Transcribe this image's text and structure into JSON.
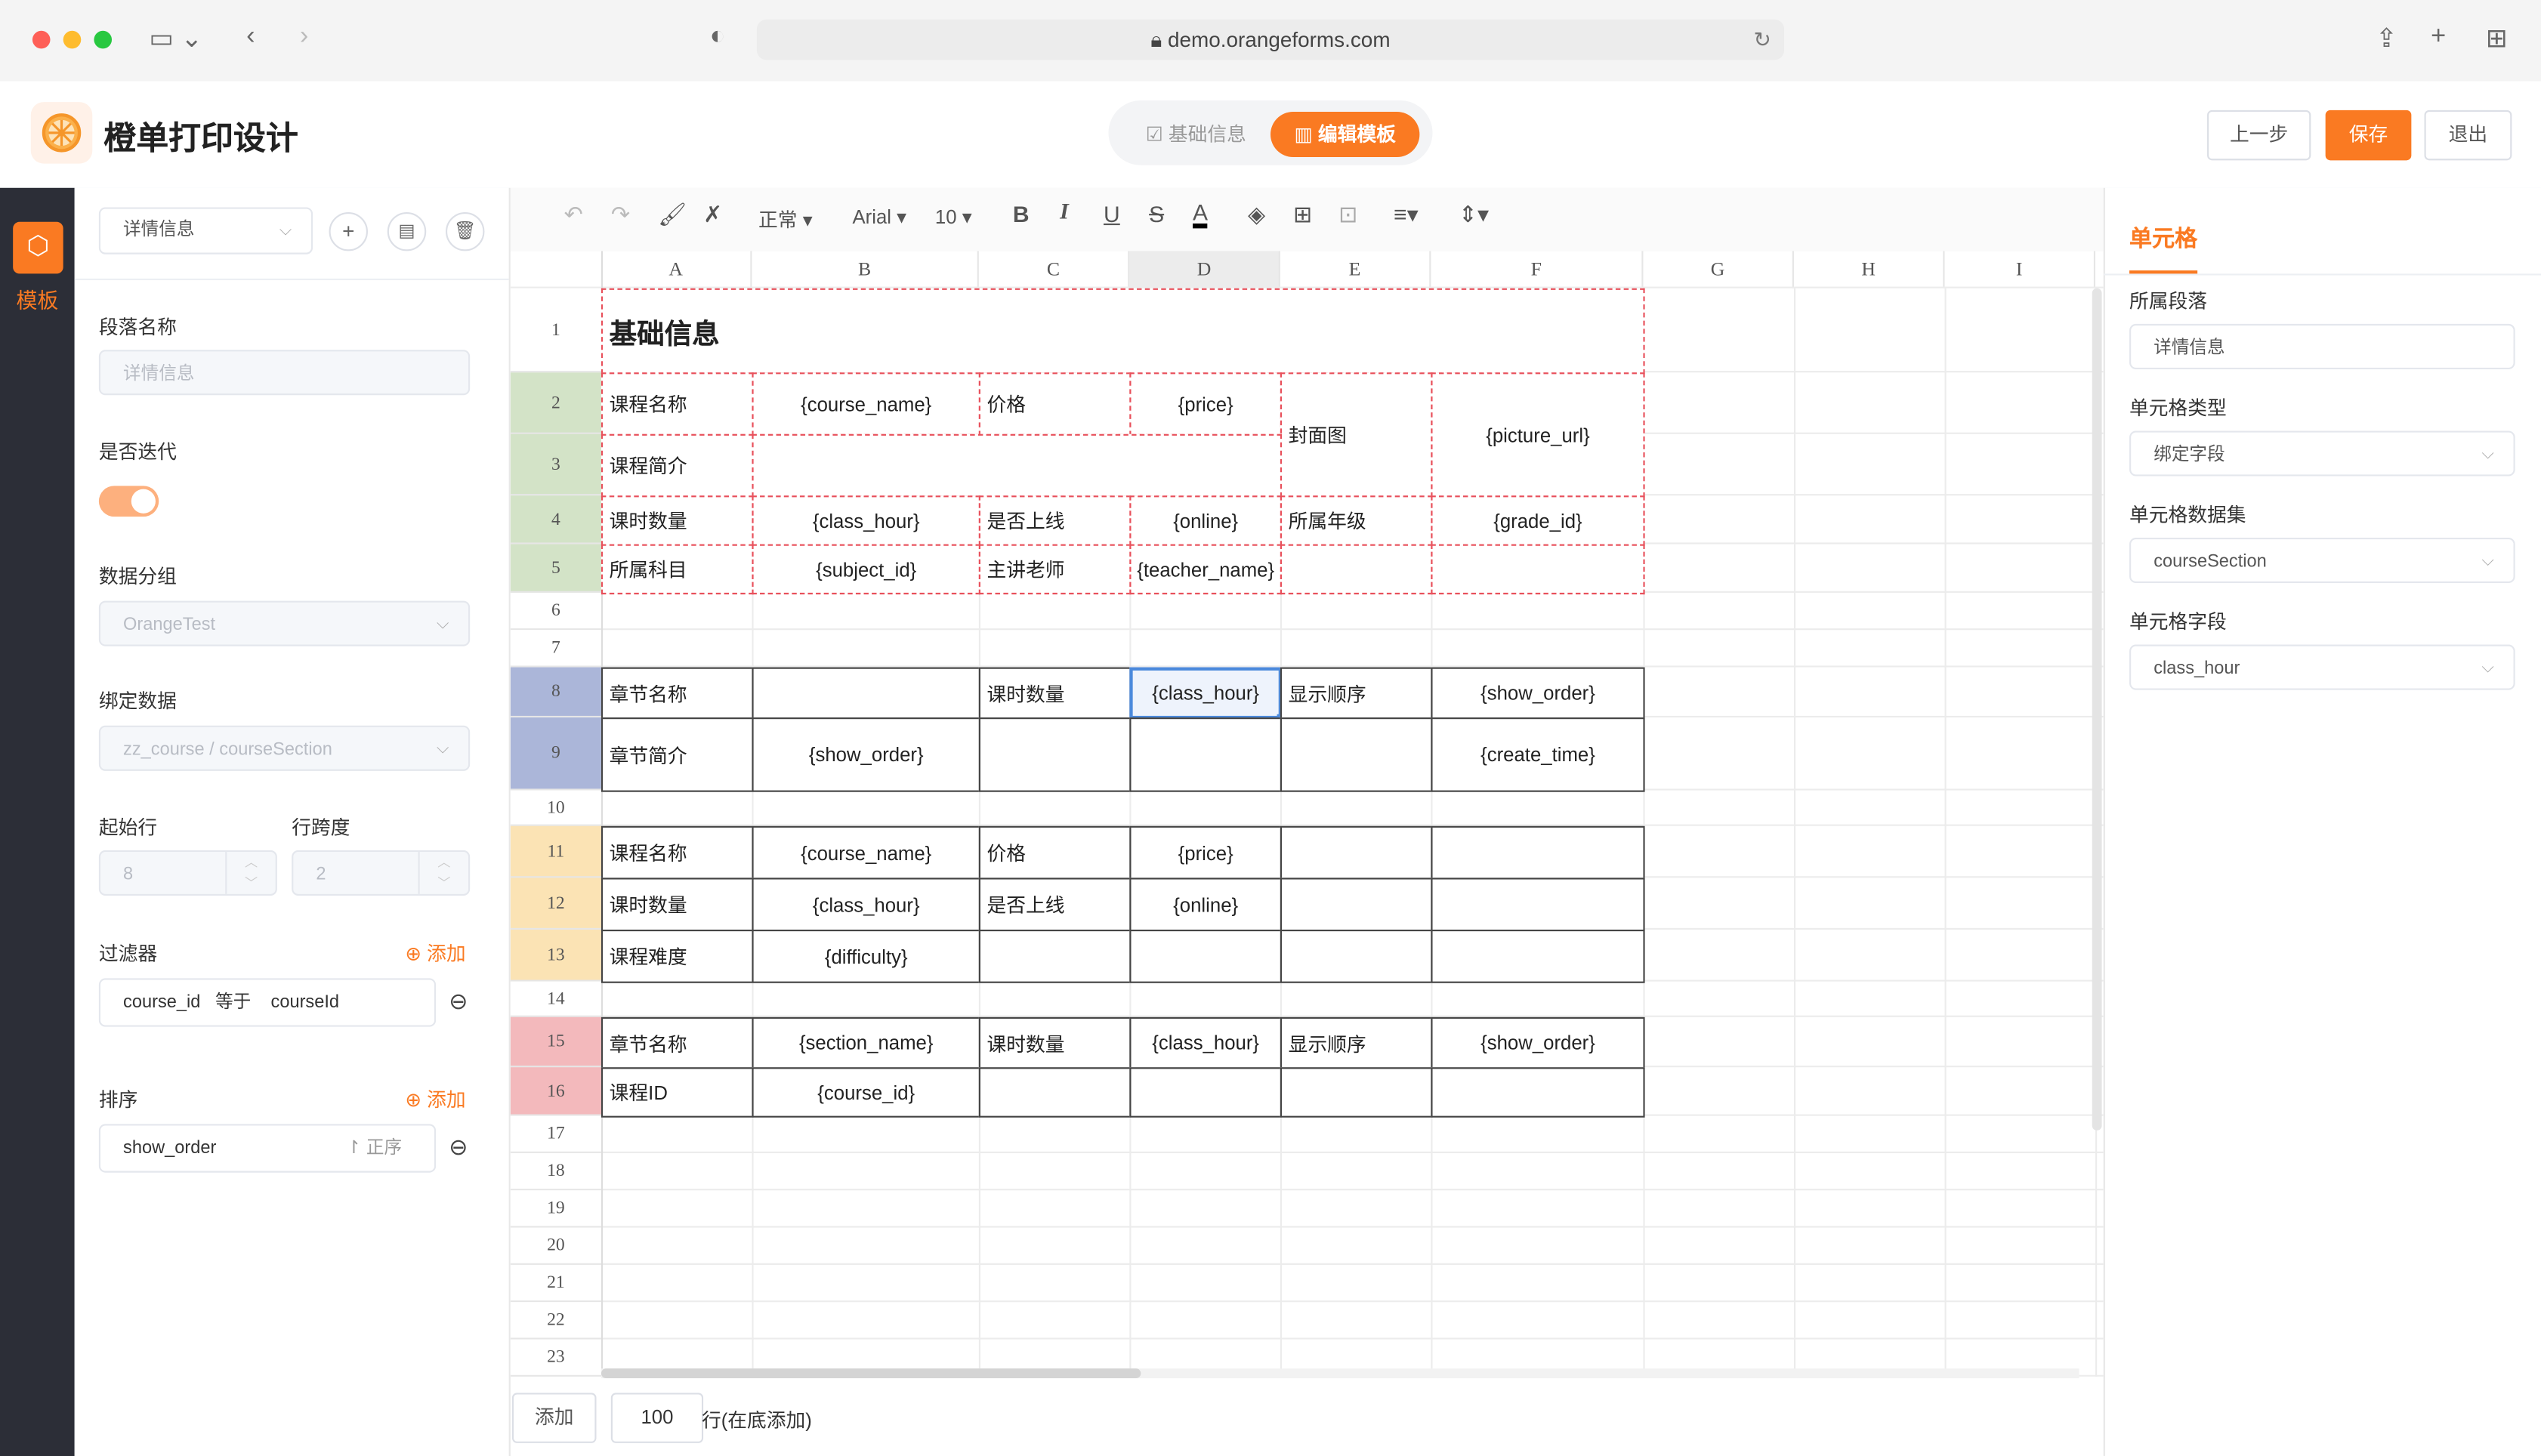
{
  "browser": {
    "url": "demo.orangeforms.com"
  },
  "app": {
    "title": "橙单打印设计",
    "accent": "#fa7a22"
  },
  "segments": [
    {
      "label": "基础信息",
      "active": false
    },
    {
      "label": "编辑模板",
      "active": true
    }
  ],
  "header_buttons": {
    "prev": "上一步",
    "save": "保存",
    "exit": "退出"
  },
  "sidebar": {
    "items": [
      {
        "label": "模板",
        "icon": "template-icon",
        "active": true
      }
    ]
  },
  "left_panel": {
    "section_select": "详情信息",
    "name_label": "段落名称",
    "name_placeholder": "详情信息",
    "iterate_label": "是否迭代",
    "iterate_on": true,
    "group_label": "数据分组",
    "group_value": "OrangeTest",
    "bind_label": "绑定数据",
    "bind_value": "zz_course / courseSection",
    "start_row_label": "起始行",
    "start_row": "8",
    "span_label": "行跨度",
    "span": "2",
    "filter_label": "过滤器",
    "add_label": "添加",
    "filter": {
      "field": "course_id",
      "op": "等于",
      "value": "courseId"
    },
    "sort_label": "排序",
    "sort": {
      "field": "show_order",
      "order": "正序"
    }
  },
  "toolbar": {
    "style": "正常",
    "font": "Arial",
    "size": "10"
  },
  "sheet": {
    "columns": [
      "A",
      "B",
      "C",
      "D",
      "E",
      "F",
      "G",
      "H",
      "I"
    ],
    "rows": [
      "1",
      "2",
      "3",
      "4",
      "5",
      "6",
      "7",
      "8",
      "9",
      "10",
      "11",
      "12",
      "13",
      "14",
      "15",
      "16",
      "17",
      "18",
      "19",
      "20",
      "21",
      "22",
      "23"
    ],
    "row_colors": {
      "2": "#d3e3c7",
      "3": "#d3e3c7",
      "4": "#d3e3c7",
      "5": "#d3e3c7",
      "8": "#abb6d9",
      "9": "#abb6d9",
      "11": "#fbe3b4",
      "12": "#fbe3b4",
      "13": "#fbe3b4",
      "15": "#f3b9bc",
      "16": "#f3b9bc"
    },
    "selected_column": "D",
    "cells": [
      {
        "r": 1,
        "c": 0,
        "cs": 6,
        "text": "基础信息",
        "style": "dash",
        "bold": true
      },
      {
        "r": 2,
        "c": 0,
        "text": "课程名称",
        "style": "dash"
      },
      {
        "r": 2,
        "c": 1,
        "text": "{course_name}",
        "style": "dash",
        "center": true
      },
      {
        "r": 2,
        "c": 2,
        "text": "价格",
        "style": "dash"
      },
      {
        "r": 2,
        "c": 3,
        "text": "{price}",
        "style": "dash",
        "center": true
      },
      {
        "r": 2,
        "c": 4,
        "rs": 2,
        "text": "封面图",
        "style": "dash"
      },
      {
        "r": 2,
        "c": 5,
        "rs": 2,
        "text": "{picture_url}",
        "style": "dash",
        "center": true
      },
      {
        "r": 3,
        "c": 0,
        "text": "课程简介",
        "style": "dash"
      },
      {
        "r": 3,
        "c": 1,
        "cs": 3,
        "text": "",
        "style": "dash"
      },
      {
        "r": 4,
        "c": 0,
        "text": "课时数量",
        "style": "dash"
      },
      {
        "r": 4,
        "c": 1,
        "text": "{class_hour}",
        "style": "dash",
        "center": true
      },
      {
        "r": 4,
        "c": 2,
        "text": "是否上线",
        "style": "dash"
      },
      {
        "r": 4,
        "c": 3,
        "text": "{online}",
        "style": "dash",
        "center": true
      },
      {
        "r": 4,
        "c": 4,
        "text": "所属年级",
        "style": "dash"
      },
      {
        "r": 4,
        "c": 5,
        "text": "{grade_id}",
        "style": "dash",
        "center": true
      },
      {
        "r": 5,
        "c": 0,
        "text": "所属科目",
        "style": "dash"
      },
      {
        "r": 5,
        "c": 1,
        "text": "{subject_id}",
        "style": "dash",
        "center": true
      },
      {
        "r": 5,
        "c": 2,
        "text": "主讲老师",
        "style": "dash"
      },
      {
        "r": 5,
        "c": 3,
        "text": "{teacher_name}",
        "style": "dash",
        "center": true
      },
      {
        "r": 5,
        "c": 4,
        "text": "",
        "style": "dash"
      },
      {
        "r": 5,
        "c": 5,
        "text": "",
        "style": "dash"
      },
      {
        "r": 8,
        "c": 0,
        "text": "章节名称",
        "style": "solid"
      },
      {
        "r": 8,
        "c": 1,
        "text": "",
        "style": "solid"
      },
      {
        "r": 8,
        "c": 2,
        "text": "课时数量",
        "style": "solid"
      },
      {
        "r": 8,
        "c": 3,
        "text": "{class_hour}",
        "style": "solid",
        "center": true,
        "selected": true
      },
      {
        "r": 8,
        "c": 4,
        "text": "显示顺序",
        "style": "solid"
      },
      {
        "r": 8,
        "c": 5,
        "text": "{show_order}",
        "style": "solid",
        "center": true
      },
      {
        "r": 9,
        "c": 0,
        "text": "章节简介",
        "style": "solid"
      },
      {
        "r": 9,
        "c": 1,
        "text": "{show_order}",
        "style": "solid",
        "center": true
      },
      {
        "r": 9,
        "c": 2,
        "text": "",
        "style": "solid"
      },
      {
        "r": 9,
        "c": 3,
        "text": "",
        "style": "solid"
      },
      {
        "r": 9,
        "c": 4,
        "text": "",
        "style": "solid"
      },
      {
        "r": 9,
        "c": 5,
        "text": "{create_time}",
        "style": "solid",
        "center": true
      },
      {
        "r": 11,
        "c": 0,
        "text": "课程名称",
        "style": "solid"
      },
      {
        "r": 11,
        "c": 1,
        "text": "{course_name}",
        "style": "solid",
        "center": true
      },
      {
        "r": 11,
        "c": 2,
        "text": "价格",
        "style": "solid"
      },
      {
        "r": 11,
        "c": 3,
        "text": "{price}",
        "style": "solid",
        "center": true
      },
      {
        "r": 11,
        "c": 4,
        "text": "",
        "style": "solid"
      },
      {
        "r": 11,
        "c": 5,
        "text": "",
        "style": "solid"
      },
      {
        "r": 12,
        "c": 0,
        "text": "课时数量",
        "style": "solid"
      },
      {
        "r": 12,
        "c": 1,
        "text": "{class_hour}",
        "style": "solid",
        "center": true
      },
      {
        "r": 12,
        "c": 2,
        "text": "是否上线",
        "style": "solid"
      },
      {
        "r": 12,
        "c": 3,
        "text": "{online}",
        "style": "solid",
        "center": true
      },
      {
        "r": 12,
        "c": 4,
        "text": "",
        "style": "solid"
      },
      {
        "r": 12,
        "c": 5,
        "text": "",
        "style": "solid"
      },
      {
        "r": 13,
        "c": 0,
        "text": "课程难度",
        "style": "solid"
      },
      {
        "r": 13,
        "c": 1,
        "text": "{difficulty}",
        "style": "solid",
        "center": true
      },
      {
        "r": 13,
        "c": 2,
        "text": "",
        "style": "solid"
      },
      {
        "r": 13,
        "c": 3,
        "text": "",
        "style": "solid"
      },
      {
        "r": 13,
        "c": 4,
        "text": "",
        "style": "solid"
      },
      {
        "r": 13,
        "c": 5,
        "text": "",
        "style": "solid"
      },
      {
        "r": 15,
        "c": 0,
        "text": "章节名称",
        "style": "solid"
      },
      {
        "r": 15,
        "c": 1,
        "text": "{section_name}",
        "style": "solid",
        "center": true
      },
      {
        "r": 15,
        "c": 2,
        "text": "课时数量",
        "style": "solid"
      },
      {
        "r": 15,
        "c": 3,
        "text": "{class_hour}",
        "style": "solid",
        "center": true
      },
      {
        "r": 15,
        "c": 4,
        "text": "显示顺序",
        "style": "solid"
      },
      {
        "r": 15,
        "c": 5,
        "text": "{show_order}",
        "style": "solid",
        "center": true
      },
      {
        "r": 16,
        "c": 0,
        "text": "课程ID",
        "style": "solid"
      },
      {
        "r": 16,
        "c": 1,
        "text": "{course_id}",
        "style": "solid",
        "center": true
      },
      {
        "r": 16,
        "c": 2,
        "text": "",
        "style": "solid"
      },
      {
        "r": 16,
        "c": 3,
        "text": "",
        "style": "solid"
      },
      {
        "r": 16,
        "c": 4,
        "text": "",
        "style": "solid"
      },
      {
        "r": 16,
        "c": 5,
        "text": "",
        "style": "solid"
      }
    ]
  },
  "bottom_bar": {
    "add_label": "添加",
    "count": "100",
    "suffix": "行(在底添加)"
  },
  "right_panel": {
    "title": "单元格",
    "section_label": "所属段落",
    "section_value": "详情信息",
    "type_label": "单元格类型",
    "type_value": "绑定字段",
    "dataset_label": "单元格数据集",
    "dataset_value": "courseSection",
    "field_label": "单元格字段",
    "field_value": "class_hour"
  }
}
